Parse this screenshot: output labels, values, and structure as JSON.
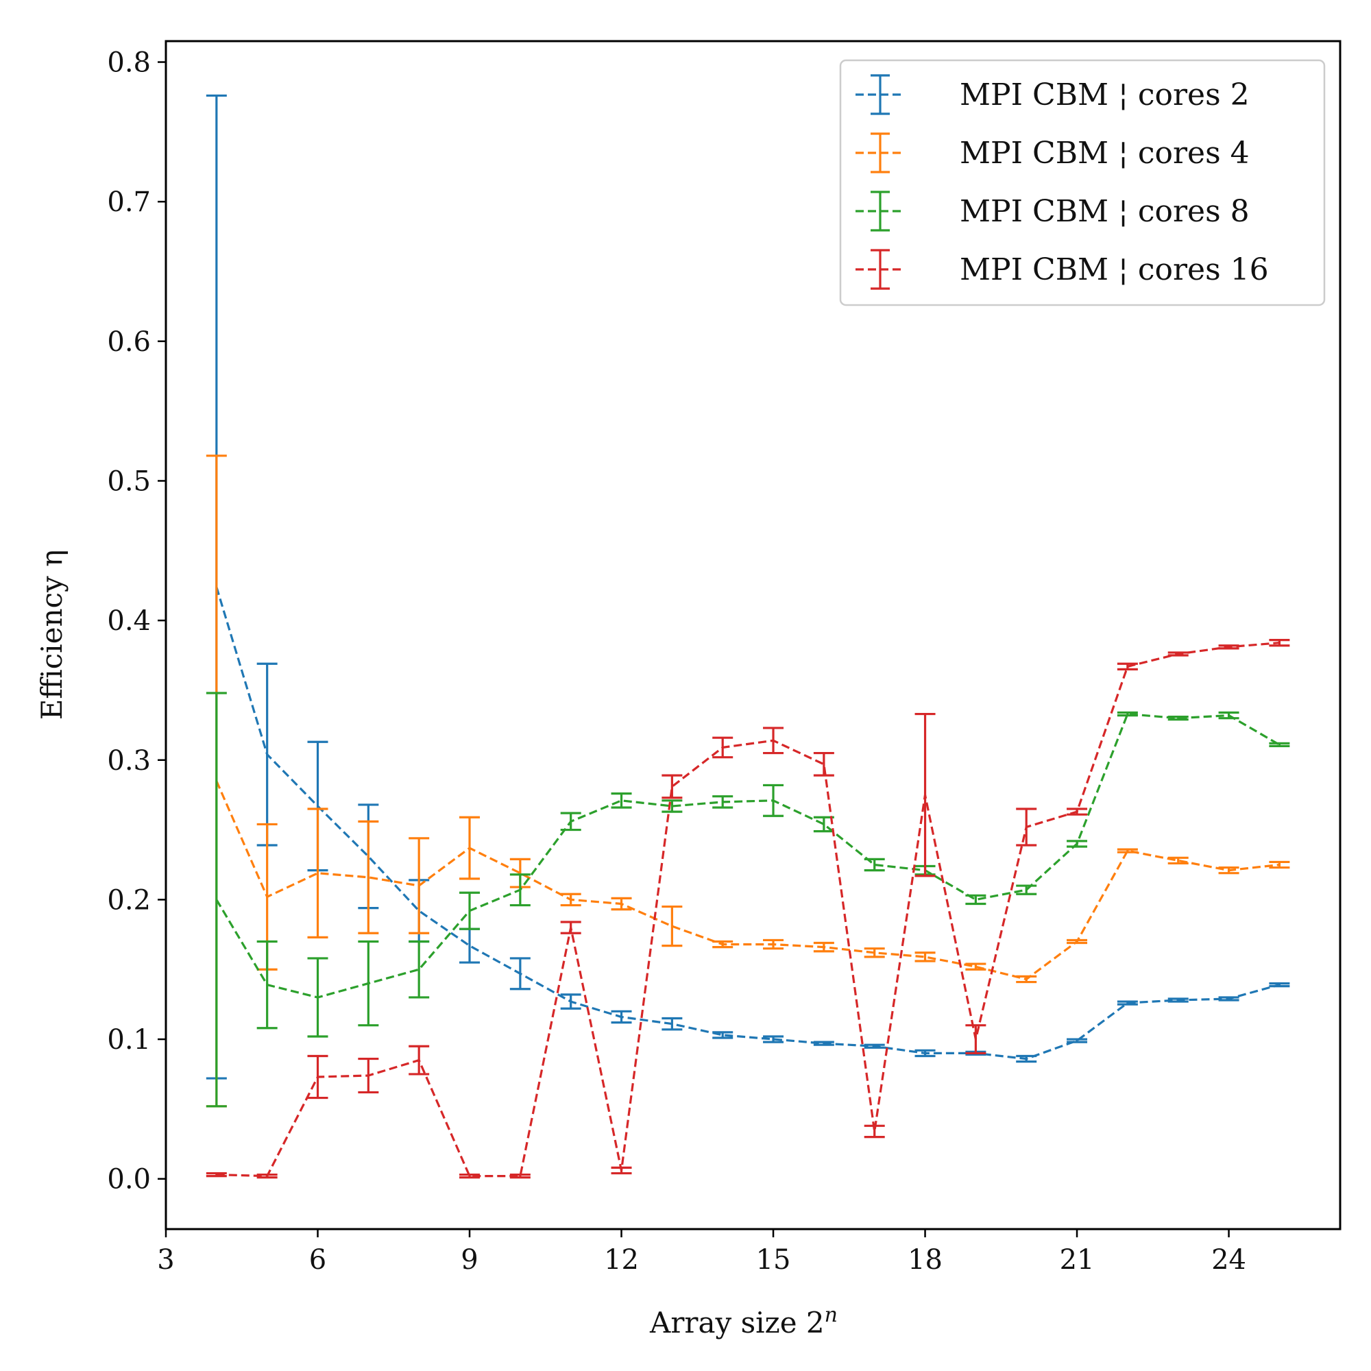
{
  "chart_data": {
    "type": "line",
    "xlabel": "Array size 2",
    "xlabel_sup": "n",
    "ylabel": "Efficiency η",
    "xlim": [
      3,
      26.2
    ],
    "ylim": [
      -0.036,
      0.815
    ],
    "xticks": [
      3,
      6,
      9,
      12,
      15,
      18,
      21,
      24
    ],
    "xtick_labels": [
      "3",
      "6",
      "9",
      "12",
      "15",
      "18",
      "21",
      "24"
    ],
    "yticks": [
      0.0,
      0.1,
      0.2,
      0.3,
      0.4,
      0.5,
      0.6,
      0.7,
      0.8
    ],
    "ytick_labels": [
      "0.0",
      "0.1",
      "0.2",
      "0.3",
      "0.4",
      "0.5",
      "0.6",
      "0.7",
      "0.8"
    ],
    "grid": false,
    "legend_position": "top-right",
    "line_style": "dashed",
    "x": [
      4,
      5,
      6,
      7,
      8,
      9,
      10,
      11,
      12,
      13,
      14,
      15,
      16,
      17,
      18,
      19,
      20,
      21,
      22,
      23,
      24,
      25
    ],
    "series": [
      {
        "name": "MPI CBM ¦ cores 2",
        "color": "#1f77b4",
        "values": [
          0.424,
          0.304,
          0.267,
          0.231,
          0.192,
          0.167,
          0.147,
          0.127,
          0.116,
          0.111,
          0.103,
          0.1,
          0.097,
          0.095,
          0.09,
          0.09,
          0.086,
          0.099,
          0.126,
          0.128,
          0.129,
          0.139
        ],
        "errors": [
          0.352,
          0.065,
          0.046,
          0.037,
          0.022,
          0.012,
          0.011,
          0.005,
          0.004,
          0.004,
          0.002,
          0.002,
          0.001,
          0.001,
          0.002,
          0.001,
          0.002,
          0.001,
          0.001,
          0.001,
          0.001,
          0.001
        ]
      },
      {
        "name": "MPI CBM ¦ cores 4",
        "color": "#ff7f0e",
        "values": [
          0.285,
          0.202,
          0.219,
          0.216,
          0.21,
          0.237,
          0.219,
          0.2,
          0.197,
          0.181,
          0.168,
          0.168,
          0.166,
          0.162,
          0.159,
          0.152,
          0.143,
          0.17,
          0.235,
          0.228,
          0.221,
          0.225
        ],
        "errors": [
          0.233,
          0.052,
          0.046,
          0.04,
          0.034,
          0.022,
          0.01,
          0.004,
          0.004,
          0.014,
          0.002,
          0.003,
          0.003,
          0.003,
          0.003,
          0.002,
          0.002,
          0.001,
          0.001,
          0.002,
          0.002,
          0.002
        ]
      },
      {
        "name": "MPI CBM ¦ cores 8",
        "color": "#2ca02c",
        "values": [
          0.2,
          0.139,
          0.13,
          0.14,
          0.15,
          0.192,
          0.207,
          0.256,
          0.271,
          0.267,
          0.27,
          0.271,
          0.254,
          0.225,
          0.221,
          0.2,
          0.207,
          0.24,
          0.333,
          0.33,
          0.332,
          0.311
        ],
        "errors": [
          0.148,
          0.031,
          0.028,
          0.03,
          0.02,
          0.013,
          0.011,
          0.006,
          0.005,
          0.004,
          0.004,
          0.011,
          0.005,
          0.004,
          0.003,
          0.003,
          0.003,
          0.002,
          0.001,
          0.001,
          0.002,
          0.001
        ]
      },
      {
        "name": "MPI CBM ¦ cores 16",
        "color": "#d62728",
        "values": [
          0.003,
          0.002,
          0.073,
          0.074,
          0.085,
          0.002,
          0.002,
          0.18,
          0.006,
          0.281,
          0.309,
          0.314,
          0.297,
          0.034,
          0.275,
          0.1,
          0.252,
          0.263,
          0.367,
          0.376,
          0.381,
          0.384
        ],
        "errors": [
          0.001,
          0.001,
          0.015,
          0.012,
          0.01,
          0.001,
          0.001,
          0.004,
          0.002,
          0.008,
          0.007,
          0.009,
          0.008,
          0.004,
          0.058,
          0.01,
          0.013,
          0.002,
          0.002,
          0.001,
          0.001,
          0.002
        ]
      }
    ]
  }
}
